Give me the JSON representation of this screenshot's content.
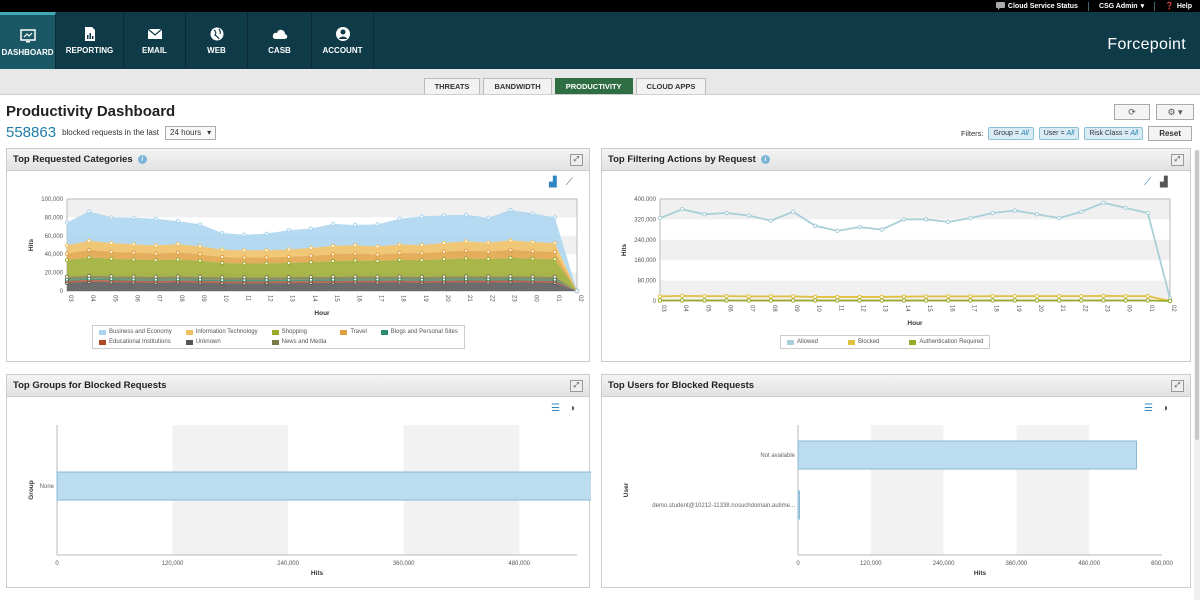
{
  "util": {
    "status": "Cloud Service Status",
    "user": "CSG Admin",
    "help": "Help"
  },
  "nav": [
    {
      "label": "DASHBOARD",
      "icon": "monitor-icon"
    },
    {
      "label": "REPORTING",
      "icon": "report-icon"
    },
    {
      "label": "EMAIL",
      "icon": "envelope-icon"
    },
    {
      "label": "WEB",
      "icon": "globe-icon"
    },
    {
      "label": "CASB",
      "icon": "cloud-icon"
    },
    {
      "label": "ACCOUNT",
      "icon": "user-icon"
    }
  ],
  "brand": "Forcepoint",
  "tabs": [
    "THREATS",
    "BANDWIDTH",
    "PRODUCTIVITY",
    "CLOUD APPS"
  ],
  "active_tab": "PRODUCTIVITY",
  "page": {
    "title": "Productivity Dashboard",
    "count": "558863",
    "count_text": "blocked requests in the last",
    "period": "24 hours"
  },
  "filters": {
    "label": "Filters:",
    "group": "Group =",
    "group_val": "All",
    "user": "User =",
    "user_val": "All",
    "risk": "Risk Class =",
    "risk_val": "All",
    "reset": "Reset"
  },
  "chart_data": [
    {
      "type": "area",
      "title": "Top Requested Categories",
      "xlabel": "Hour",
      "ylabel": "Hits",
      "ylim": [
        0,
        100000
      ],
      "yticks": [
        "100,000",
        "80,000",
        "60,000",
        "40,000",
        "20,000",
        "0"
      ],
      "x": [
        "03",
        "04",
        "05",
        "06",
        "07",
        "08",
        "09",
        "10",
        "11",
        "12",
        "13",
        "14",
        "15",
        "16",
        "17",
        "18",
        "19",
        "20",
        "21",
        "22",
        "23",
        "00",
        "01",
        "02"
      ],
      "stacked": true,
      "series": [
        {
          "name": "Unknown",
          "color": "#555555",
          "values": [
            9000,
            10000,
            9500,
            9200,
            9000,
            9300,
            9000,
            8500,
            8400,
            8500,
            8600,
            8800,
            9000,
            9200,
            9100,
            9300,
            9000,
            9200,
            9400,
            9300,
            9500,
            9200,
            9000,
            0
          ]
        },
        {
          "name": "Educational Institutions",
          "color": "#b24a2a",
          "values": [
            2000,
            2000,
            2000,
            2000,
            2000,
            2000,
            2000,
            2000,
            2000,
            2000,
            2000,
            2000,
            2000,
            2000,
            2000,
            2000,
            2000,
            2000,
            2000,
            2000,
            2000,
            2000,
            2000,
            0
          ]
        },
        {
          "name": "Blogs and Personal Sites",
          "color": "#2c8a70",
          "values": [
            1500,
            1500,
            1500,
            1500,
            1500,
            1500,
            1500,
            1500,
            1500,
            1500,
            1500,
            1500,
            1500,
            1500,
            1500,
            1500,
            1500,
            1500,
            1500,
            1500,
            1500,
            1500,
            1500,
            0
          ]
        },
        {
          "name": "News and Media",
          "color": "#7a7a4a",
          "values": [
            3000,
            3000,
            3000,
            3000,
            3000,
            3000,
            3000,
            3000,
            3000,
            3000,
            3000,
            3000,
            3000,
            3000,
            3000,
            3000,
            3000,
            3000,
            3000,
            3000,
            3000,
            3000,
            3000,
            0
          ]
        },
        {
          "name": "Shopping",
          "color": "#9aa92a",
          "values": [
            18000,
            20000,
            19000,
            18500,
            18000,
            18500,
            17500,
            15500,
            15000,
            15000,
            15500,
            16000,
            17000,
            17500,
            17000,
            18000,
            18000,
            19000,
            19500,
            19000,
            20000,
            19500,
            19000,
            0
          ]
        },
        {
          "name": "Travel",
          "color": "#e0a040",
          "values": [
            7000,
            8000,
            7500,
            7500,
            7000,
            7500,
            7000,
            6500,
            6500,
            6500,
            6500,
            7000,
            7500,
            7500,
            7000,
            7500,
            7500,
            8000,
            8500,
            8000,
            8500,
            8000,
            8000,
            0
          ]
        },
        {
          "name": "Information Technology",
          "color": "#f0c060",
          "values": [
            9000,
            10000,
            9500,
            9000,
            9000,
            9200,
            8500,
            8000,
            7800,
            7800,
            8000,
            8500,
            9000,
            9000,
            8800,
            9200,
            9000,
            9500,
            10000,
            9800,
            10500,
            10000,
            9500,
            0
          ]
        },
        {
          "name": "Business and Economy",
          "color": "#a8d4ee",
          "values": [
            25000,
            32000,
            28000,
            29000,
            29000,
            25000,
            24000,
            18000,
            17000,
            18000,
            21000,
            21000,
            24000,
            22000,
            24000,
            28000,
            31000,
            30000,
            29000,
            27000,
            33000,
            31000,
            28000,
            0
          ]
        }
      ],
      "legend": [
        "Business and Economy",
        "Information Technology",
        "Shopping",
        "Travel",
        "Blogs and Personal Sites",
        "Educational Institutions",
        "Unknown",
        "News and Media"
      ],
      "legend_placement": "bottom"
    },
    {
      "type": "line",
      "title": "Top Filtering Actions by Request",
      "xlabel": "Hour",
      "ylabel": "Hits",
      "ylim": [
        0,
        400000
      ],
      "yticks": [
        "400,000",
        "320,000",
        "240,000",
        "160,000",
        "80,000",
        "0"
      ],
      "x": [
        "03",
        "04",
        "05",
        "06",
        "07",
        "08",
        "09",
        "10",
        "11",
        "12",
        "13",
        "14",
        "15",
        "16",
        "17",
        "18",
        "19",
        "20",
        "21",
        "22",
        "23",
        "00",
        "01",
        "02"
      ],
      "series": [
        {
          "name": "Allowed",
          "color": "#a9cfd9",
          "values": [
            325000,
            360000,
            340000,
            345000,
            335000,
            315000,
            350000,
            295000,
            275000,
            290000,
            280000,
            320000,
            320000,
            310000,
            325000,
            345000,
            355000,
            340000,
            325000,
            350000,
            385000,
            365000,
            345000,
            10000
          ]
        },
        {
          "name": "Blocked",
          "color": "#e0c040",
          "values": [
            18000,
            20000,
            19000,
            19000,
            18000,
            18000,
            18000,
            16000,
            16000,
            16000,
            16000,
            17000,
            18000,
            18000,
            18000,
            19000,
            19000,
            19000,
            19000,
            19000,
            20000,
            19000,
            19000,
            0
          ]
        },
        {
          "name": "Authentication Required",
          "color": "#9aa92a",
          "values": [
            2000,
            2000,
            2000,
            2000,
            2000,
            2000,
            2000,
            2000,
            2000,
            2000,
            2000,
            2000,
            2000,
            2000,
            2000,
            2000,
            2000,
            2000,
            2000,
            2000,
            2000,
            2000,
            2000,
            0
          ]
        }
      ],
      "legend": [
        "Allowed",
        "Blocked",
        "Authentication Required"
      ],
      "legend_placement": "bottom"
    },
    {
      "type": "bar",
      "orientation": "horizontal",
      "title": "Top Groups for Blocked Requests",
      "xlabel": "Hits",
      "ylabel": "Group",
      "xlim": [
        0,
        540000
      ],
      "xticks": [
        "0",
        "120,000",
        "240,000",
        "360,000",
        "480,000"
      ],
      "categories": [
        "None"
      ],
      "values": [
        558863
      ]
    },
    {
      "type": "bar",
      "orientation": "horizontal",
      "title": "Top Users for Blocked Requests",
      "xlabel": "Hits",
      "ylabel": "User",
      "xlim": [
        0,
        600000
      ],
      "xticks": [
        "0",
        "120,000",
        "240,000",
        "360,000",
        "480,000",
        "600,000"
      ],
      "categories": [
        "Not available",
        "demo.student@10212-11338.nosuchdomain.autime..."
      ],
      "values": [
        558000,
        800
      ]
    }
  ]
}
